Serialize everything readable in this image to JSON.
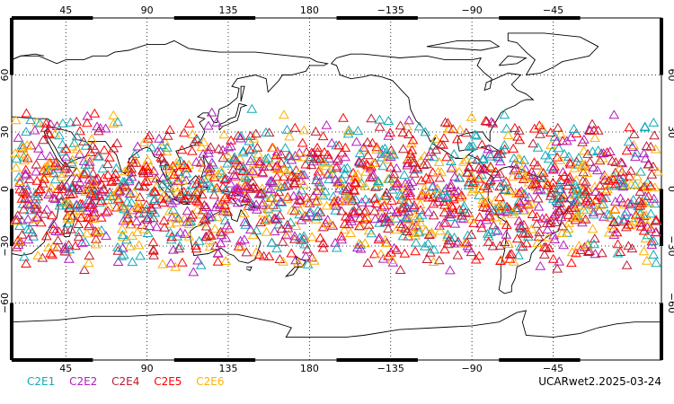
{
  "map": {
    "projection": "equirectangular",
    "center_longitude": 180,
    "lon_range": [
      15,
      375
    ],
    "lat_range": [
      -90,
      90
    ],
    "top_lon_labels": [
      "45",
      "90",
      "135",
      "180",
      "−135",
      "−90",
      "−45"
    ],
    "bottom_lon_labels": [
      "45",
      "90",
      "135",
      "180",
      "−135",
      "−90",
      "−45"
    ],
    "lat_labels": [
      "60",
      "30",
      "0",
      "−30",
      "−60"
    ],
    "grid": "dotted",
    "coastline_color": "#000000",
    "marker": "triangle",
    "occultation_band_lat": [
      -47,
      42
    ]
  },
  "legend": {
    "items": [
      {
        "label": "C2E1",
        "color": "#12a9b6"
      },
      {
        "label": "C2E2",
        "color": "#b21bbd"
      },
      {
        "label": "C2E4",
        "color": "#bd1b30"
      },
      {
        "label": "C2E5",
        "color": "#ff0000"
      },
      {
        "label": "C2E6",
        "color": "#ffb000"
      }
    ]
  },
  "caption": "UCARwet2.2025-03-24"
}
